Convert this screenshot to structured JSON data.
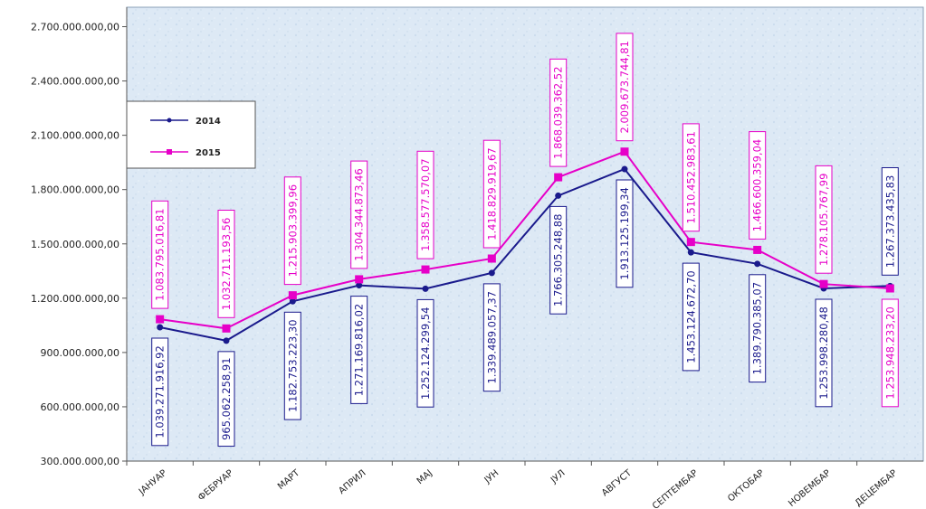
{
  "chart_data": {
    "type": "line",
    "categories": [
      "ЈАНУАР",
      "ФЕБРУАР",
      "МАРТ",
      "АПРИЛ",
      "МАЈ",
      "ЈУН",
      "ЈУЛ",
      "АВГУСТ",
      "СЕПТЕМБАР",
      "ОКТОБАР",
      "НОВЕМБАР",
      "ДЕЦЕМБАР"
    ],
    "series": [
      {
        "name": "2014",
        "color": "#1a1a8c",
        "values": [
          1039271916.92,
          965062258.91,
          1182753223.3,
          1271169816.02,
          1252124299.54,
          1339489057.37,
          1766305248.88,
          1913125199.34,
          1453124672.7,
          1389790385.07,
          1253998280.48,
          1267373435.83
        ],
        "labels": [
          "1.039.271.916,92",
          "965.062.258,91",
          "1.182.753.223,30",
          "1.271.169.816,02",
          "1.252.124.299,54",
          "1.339.489.057,37",
          "1.766.305.248,88",
          "1.913.125.199,34",
          "1.453.124.672,70",
          "1.389.790.385,07",
          "1.253.998.280,48",
          "1.267.373.435,83"
        ]
      },
      {
        "name": "2015",
        "color": "#e600c8",
        "values": [
          1083795016.81,
          1032711193.56,
          1215903399.96,
          1304344873.46,
          1358577570.07,
          1418829919.67,
          1868039362.52,
          2009673744.81,
          1510452983.61,
          1466600359.04,
          1278105767.99,
          1253948233.2
        ],
        "labels": [
          "1.083.795.016,81",
          "1.032.711.193,56",
          "1.215.903.399,96",
          "1.304.344.873,46",
          "1.358.577.570,07",
          "1.418.829.919,67",
          "1.868.039.362,52",
          "2.009.673.744,81",
          "1.510.452.983,61",
          "1.466.600.359,04",
          "1.278.105.767,99",
          "1.253.948.233,20"
        ]
      }
    ],
    "y_ticks": [
      300000000,
      600000000,
      900000000,
      1200000000,
      1500000000,
      1800000000,
      2100000000,
      2400000000,
      2700000000
    ],
    "y_tick_labels": [
      "300.000.000,00",
      "600.000.000,00",
      "900.000.000,00",
      "1.200.000.000,00",
      "1.500.000.000,00",
      "1.800.000.000,00",
      "2.100.000.000,00",
      "2.400.000.000,00",
      "2.700.000.000,00"
    ],
    "ylim": [
      300000000,
      2800000000
    ],
    "grid": false,
    "legend": "left"
  }
}
